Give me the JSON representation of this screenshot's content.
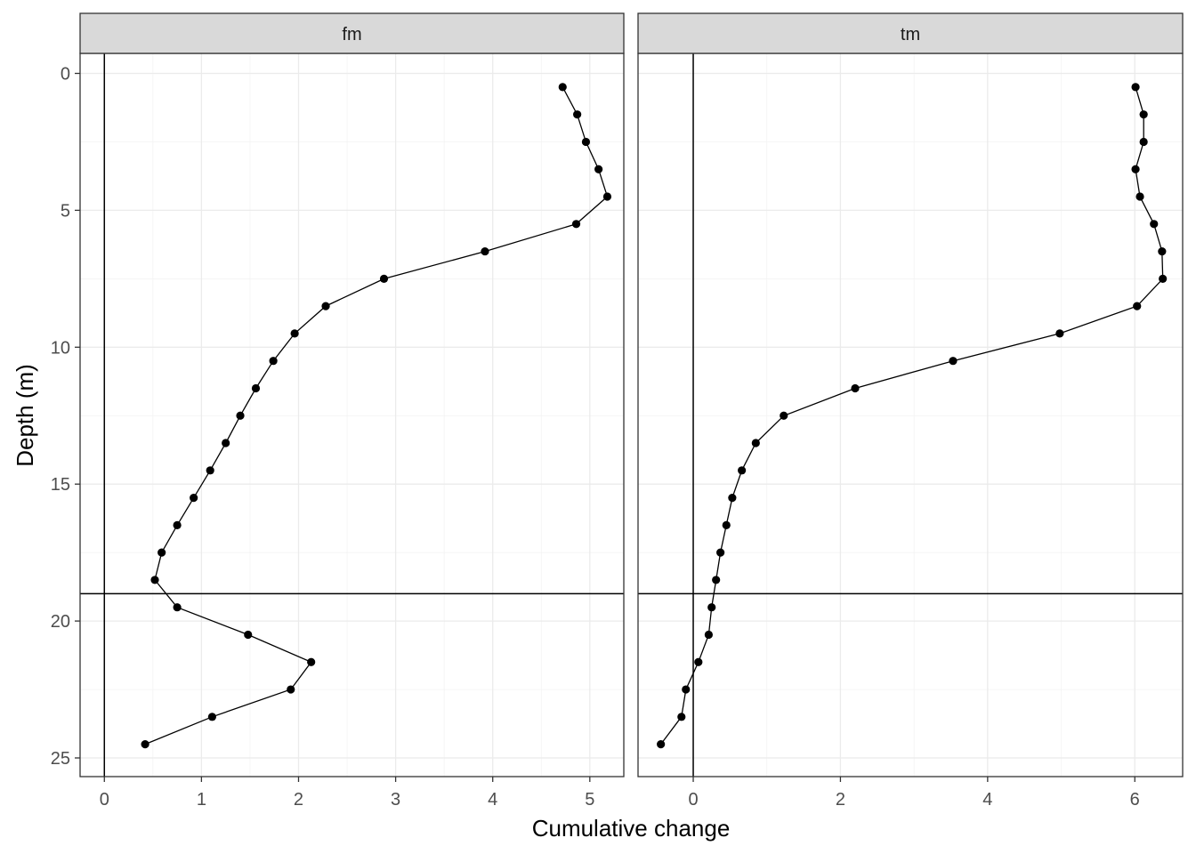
{
  "chart_data": {
    "type": "line",
    "xlabel": "Cumulative change",
    "ylabel": "Depth (m)",
    "y_reversed": true,
    "ylim": [
      0,
      25
    ],
    "yticks": [
      0,
      5,
      10,
      15,
      20,
      25
    ],
    "grid": true,
    "reference_lines": {
      "vertical_x": 0,
      "horizontal_y": 19
    },
    "panels": [
      {
        "label": "fm",
        "xlim": [
          -0.25,
          5.35
        ],
        "xticks": [
          0,
          1,
          2,
          3,
          4,
          5
        ],
        "points": [
          {
            "x": 4.72,
            "y": 0.5
          },
          {
            "x": 4.87,
            "y": 1.5
          },
          {
            "x": 4.96,
            "y": 2.5
          },
          {
            "x": 5.09,
            "y": 3.5
          },
          {
            "x": 5.18,
            "y": 4.5
          },
          {
            "x": 4.86,
            "y": 5.5
          },
          {
            "x": 3.92,
            "y": 6.5
          },
          {
            "x": 2.88,
            "y": 7.5
          },
          {
            "x": 2.28,
            "y": 8.5
          },
          {
            "x": 1.96,
            "y": 9.5
          },
          {
            "x": 1.74,
            "y": 10.5
          },
          {
            "x": 1.56,
            "y": 11.5
          },
          {
            "x": 1.4,
            "y": 12.5
          },
          {
            "x": 1.25,
            "y": 13.5
          },
          {
            "x": 1.09,
            "y": 14.5
          },
          {
            "x": 0.92,
            "y": 15.5
          },
          {
            "x": 0.75,
            "y": 16.5
          },
          {
            "x": 0.59,
            "y": 17.5
          },
          {
            "x": 0.52,
            "y": 18.5
          },
          {
            "x": 0.75,
            "y": 19.5
          },
          {
            "x": 1.48,
            "y": 20.5
          },
          {
            "x": 2.13,
            "y": 21.5
          },
          {
            "x": 1.92,
            "y": 22.5
          },
          {
            "x": 1.11,
            "y": 23.5
          },
          {
            "x": 0.42,
            "y": 24.5
          }
        ]
      },
      {
        "label": "tm",
        "xlim": [
          -0.75,
          6.65
        ],
        "xticks": [
          0,
          2,
          4,
          6
        ],
        "points": [
          {
            "x": 6.01,
            "y": 0.5
          },
          {
            "x": 6.12,
            "y": 1.5
          },
          {
            "x": 6.12,
            "y": 2.5
          },
          {
            "x": 6.01,
            "y": 3.5
          },
          {
            "x": 6.07,
            "y": 4.5
          },
          {
            "x": 6.26,
            "y": 5.5
          },
          {
            "x": 6.37,
            "y": 6.5
          },
          {
            "x": 6.38,
            "y": 7.5
          },
          {
            "x": 6.03,
            "y": 8.5
          },
          {
            "x": 4.98,
            "y": 9.5
          },
          {
            "x": 3.53,
            "y": 10.5
          },
          {
            "x": 2.2,
            "y": 11.5
          },
          {
            "x": 1.23,
            "y": 12.5
          },
          {
            "x": 0.85,
            "y": 13.5
          },
          {
            "x": 0.66,
            "y": 14.5
          },
          {
            "x": 0.53,
            "y": 15.5
          },
          {
            "x": 0.45,
            "y": 16.5
          },
          {
            "x": 0.37,
            "y": 17.5
          },
          {
            "x": 0.31,
            "y": 18.5
          },
          {
            "x": 0.25,
            "y": 19.5
          },
          {
            "x": 0.21,
            "y": 20.5
          },
          {
            "x": 0.07,
            "y": 21.5
          },
          {
            "x": -0.1,
            "y": 22.5
          },
          {
            "x": -0.16,
            "y": 23.5
          },
          {
            "x": -0.44,
            "y": 24.5
          }
        ]
      }
    ]
  }
}
